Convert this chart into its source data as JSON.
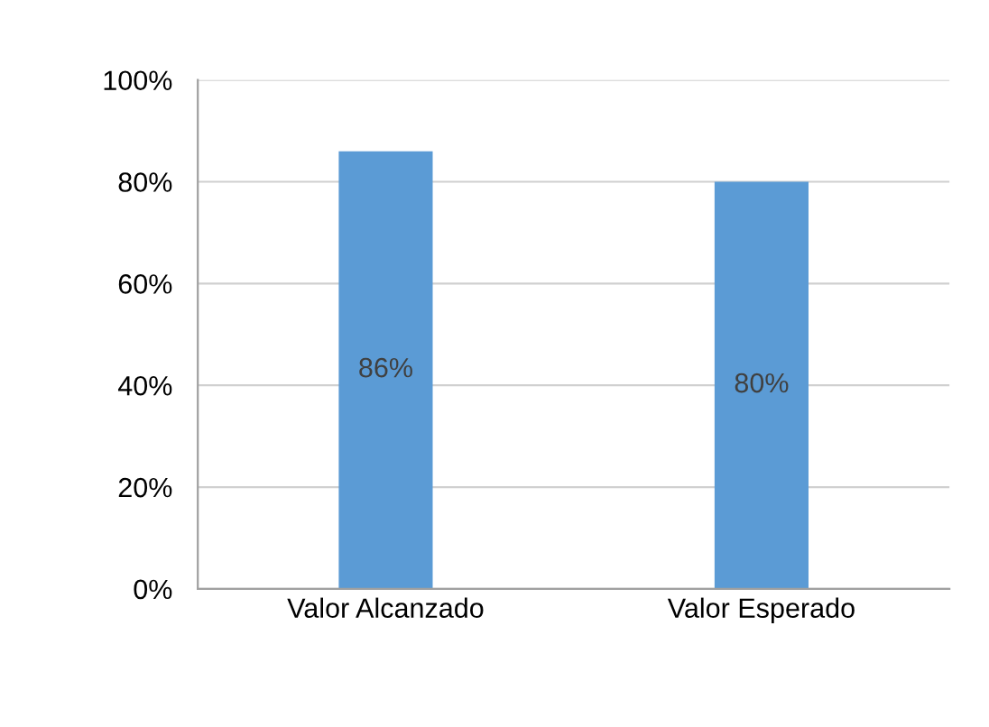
{
  "chart_data": {
    "type": "bar",
    "categories": [
      "Valor Alcanzado",
      "Valor Esperado"
    ],
    "values": [
      86,
      80
    ],
    "value_labels": [
      "86%",
      "80%"
    ],
    "color": "#5b9bd5",
    "ylim": [
      0,
      100
    ],
    "yticks": [
      {
        "value": 0,
        "label": "0%"
      },
      {
        "value": 20,
        "label": "20%"
      },
      {
        "value": 40,
        "label": "40%"
      },
      {
        "value": 60,
        "label": "60%"
      },
      {
        "value": 80,
        "label": "80%"
      },
      {
        "value": 100,
        "label": "100%"
      }
    ],
    "grid": "y"
  }
}
